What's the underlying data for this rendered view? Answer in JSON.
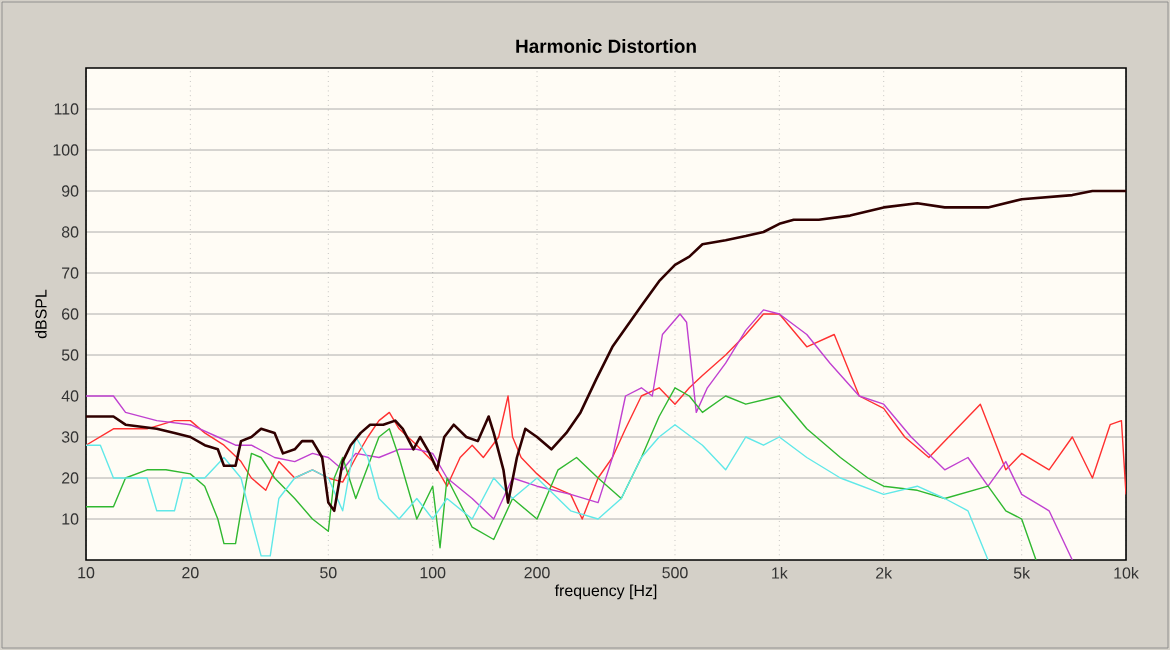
{
  "chart_data": {
    "type": "line",
    "title": "Harmonic Distortion",
    "xlabel": "frequency [Hz]",
    "ylabel": "dBSPL",
    "log": "x",
    "grid": true,
    "xlim": [
      10,
      10000
    ],
    "ylim": [
      0,
      120
    ],
    "xticks": [
      10,
      20,
      50,
      100,
      200,
      500,
      {
        "value": 1000,
        "label": "1k"
      },
      {
        "value": 2000,
        "label": "2k"
      },
      {
        "value": 5000,
        "label": "5k"
      },
      {
        "value": 10000,
        "label": "10k"
      }
    ],
    "yticks": [
      10,
      20,
      30,
      40,
      50,
      60,
      70,
      80,
      90,
      100,
      110
    ],
    "series": [
      {
        "color": "#ff3030",
        "x": [
          10,
          12,
          15,
          18,
          20,
          22,
          25,
          28,
          30,
          33,
          36,
          40,
          45,
          50,
          55,
          60,
          65,
          70,
          75,
          80,
          90,
          100,
          110,
          120,
          130,
          140,
          155,
          165,
          170,
          180,
          200,
          220,
          250,
          270,
          300,
          330,
          360,
          400,
          450,
          500,
          550,
          600,
          700,
          800,
          900,
          1000,
          1200,
          1440,
          1700,
          2000,
          2300,
          2700,
          3800,
          4500,
          5000,
          6000,
          7000,
          8000,
          9000,
          9700,
          10000
        ],
        "values": [
          28,
          32,
          32,
          34,
          34,
          31,
          28,
          24,
          20,
          17,
          24,
          20,
          22,
          20,
          19,
          25,
          30,
          34,
          36,
          32,
          28,
          24,
          18,
          25,
          28,
          25,
          30,
          40,
          30,
          25,
          21,
          18,
          16,
          10,
          20,
          25,
          32,
          40,
          42,
          38,
          42,
          45,
          50,
          55,
          60,
          60,
          52,
          55,
          40,
          37,
          30,
          25,
          38,
          22,
          26,
          22,
          30,
          20,
          33,
          34,
          16
        ]
      },
      {
        "color": "#c040d0",
        "x": [
          10,
          12,
          13,
          16,
          20,
          24,
          27,
          30,
          35,
          40,
          45,
          50,
          55,
          60,
          70,
          80,
          90,
          100,
          110,
          130,
          150,
          170,
          200,
          250,
          300,
          330,
          360,
          400,
          430,
          460,
          517,
          540,
          576,
          620,
          700,
          800,
          900,
          1000,
          1200,
          1400,
          1700,
          2000,
          2400,
          3000,
          3500,
          4000,
          4500,
          5000,
          6000,
          7000
        ],
        "values": [
          40,
          40,
          36,
          34,
          33,
          30,
          28,
          28,
          25,
          24,
          26,
          25,
          22,
          26,
          25,
          27,
          27,
          26,
          20,
          15,
          10,
          20,
          18,
          16,
          14,
          25,
          40,
          42,
          40,
          55,
          60,
          58,
          36,
          42,
          48,
          56,
          61,
          60,
          55,
          48,
          40,
          38,
          30,
          22,
          25,
          18,
          24,
          16,
          12,
          0
        ]
      },
      {
        "color": "#30b830",
        "x": [
          10,
          12,
          13,
          15,
          17,
          20,
          22,
          24,
          25,
          27,
          28,
          30,
          32,
          35,
          40,
          45,
          50,
          52,
          55,
          60,
          70,
          75,
          80,
          90,
          100,
          105,
          110,
          130,
          150,
          170,
          200,
          230,
          260,
          300,
          350,
          400,
          450,
          500,
          550,
          600,
          700,
          800,
          1000,
          1200,
          1500,
          1800,
          2000,
          2500,
          3000,
          4000,
          4500,
          5000,
          5500
        ],
        "values": [
          13,
          13,
          20,
          22,
          22,
          21,
          18,
          10,
          4,
          4,
          12,
          26,
          25,
          20,
          15,
          10,
          7,
          20,
          25,
          15,
          30,
          32,
          25,
          10,
          18,
          3,
          20,
          8,
          5,
          15,
          10,
          22,
          25,
          20,
          15,
          25,
          35,
          42,
          40,
          36,
          40,
          38,
          40,
          32,
          25,
          20,
          18,
          17,
          15,
          18,
          12,
          10,
          0
        ]
      },
      {
        "color": "#60e8e8",
        "x": [
          10,
          11,
          12,
          15,
          16,
          18,
          19,
          22,
          25,
          28,
          30,
          32,
          34,
          36,
          40,
          45,
          50,
          55,
          60,
          65,
          70,
          80,
          90,
          100,
          110,
          130,
          150,
          170,
          200,
          250,
          300,
          350,
          400,
          450,
          500,
          600,
          700,
          800,
          900,
          1000,
          1200,
          1500,
          2000,
          2500,
          3000,
          3500,
          4000
        ],
        "values": [
          28,
          28,
          20,
          20,
          12,
          12,
          20,
          20,
          25,
          20,
          10,
          1,
          1,
          15,
          20,
          22,
          20,
          12,
          30,
          25,
          15,
          10,
          15,
          10,
          15,
          10,
          20,
          15,
          20,
          12,
          10,
          15,
          25,
          30,
          33,
          28,
          22,
          30,
          28,
          30,
          25,
          20,
          16,
          18,
          15,
          12,
          0
        ]
      },
      {
        "color": "#300000",
        "x": [
          10,
          12,
          13,
          16,
          18,
          20,
          22,
          24,
          25,
          27,
          28,
          30,
          32,
          35,
          37,
          40,
          42,
          45,
          48,
          50,
          52,
          55,
          58,
          62,
          66,
          72,
          78,
          82,
          88,
          92,
          98,
          103,
          108,
          115,
          125,
          135,
          145,
          150,
          160,
          165,
          175,
          185,
          200,
          220,
          243,
          267,
          296,
          330,
          400,
          450,
          500,
          550,
          600,
          700,
          800,
          900,
          1000,
          1100,
          1300,
          1600,
          2000,
          2500,
          3000,
          4000,
          5000,
          7000,
          8000,
          10000
        ],
        "values": [
          35,
          35,
          33,
          32,
          31,
          30,
          28,
          27,
          23,
          23,
          29,
          30,
          32,
          31,
          26,
          27,
          29,
          29,
          25,
          14,
          12,
          24,
          28,
          31,
          33,
          33,
          34,
          32,
          27,
          30,
          26,
          22,
          30,
          33,
          30,
          29,
          35,
          31,
          22,
          14,
          25,
          32,
          30,
          27,
          31,
          36,
          44,
          52,
          62,
          68,
          72,
          74,
          77,
          78,
          79,
          80,
          82,
          83,
          83,
          84,
          86,
          87,
          86,
          86,
          88,
          89,
          90,
          90
        ]
      }
    ]
  }
}
